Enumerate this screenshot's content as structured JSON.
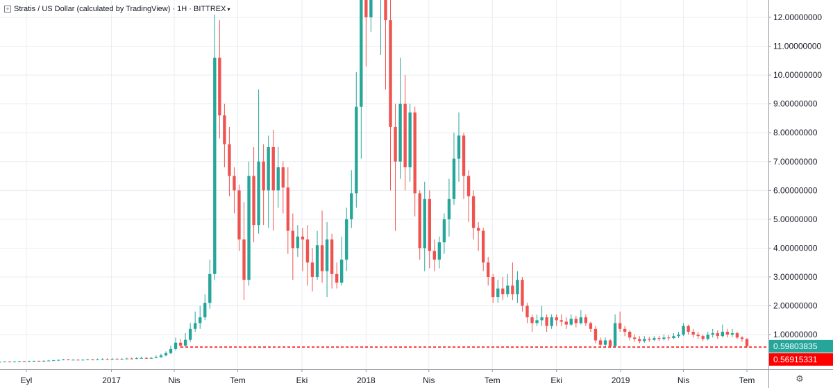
{
  "header": {
    "title": "Stratis / US Dollar (calculated by TradingView) · 1H · BITTREX",
    "chevron": "▾"
  },
  "settings_icon": "gear-icon",
  "colors": {
    "up": "#26a69a",
    "down": "#ef5350",
    "grid": "#e9ecf2",
    "axis_line": "#9598a1",
    "last_price": "#26a69a",
    "horizontal_line": "#ff0000"
  },
  "chart_data": {
    "type": "candlestick",
    "y_axis": {
      "min": -0.2,
      "max": 12.6,
      "ticks": [
        1,
        2,
        3,
        4,
        5,
        6,
        7,
        8,
        9,
        10,
        11,
        12
      ],
      "tick_labels": [
        "1.00000000",
        "2.00000000",
        "3.00000000",
        "4.00000000",
        "5.00000000",
        "6.00000000",
        "7.00000000",
        "8.00000000",
        "9.00000000",
        "10.00000000",
        "11.00000000",
        "12.00000000"
      ]
    },
    "x_axis": {
      "labels": [
        {
          "label": "Eyl",
          "date": "2016-09-01"
        },
        {
          "label": "2017",
          "date": "2017-01-01"
        },
        {
          "label": "Nis",
          "date": "2017-04-01"
        },
        {
          "label": "Tem",
          "date": "2017-07-01"
        },
        {
          "label": "Eki",
          "date": "2017-10-01"
        },
        {
          "label": "2018",
          "date": "2018-01-01"
        },
        {
          "label": "Nis",
          "date": "2018-04-01"
        },
        {
          "label": "Tem",
          "date": "2018-07-01"
        },
        {
          "label": "Eki",
          "date": "2018-10-01"
        },
        {
          "label": "2019",
          "date": "2019-01-01"
        },
        {
          "label": "Nis",
          "date": "2019-04-01"
        },
        {
          "label": "Tem",
          "date": "2019-07-01"
        }
      ]
    },
    "price_labels": [
      {
        "label": "0.59803835",
        "value": 0.598,
        "color": "#26a69a"
      },
      {
        "label": "0.56915331",
        "value": 0.569,
        "color": "#ff0000"
      }
    ],
    "horizontal_line": {
      "value": 0.57,
      "start_date": "2017-04-10",
      "style": "dashed"
    },
    "candles_start_date": "2016-07-25",
    "candles_interval_days": 7,
    "candles": [
      [
        0.06,
        0.06,
        0.07,
        0.05
      ],
      [
        0.06,
        0.07,
        0.08,
        0.05
      ],
      [
        0.07,
        0.06,
        0.08,
        0.05
      ],
      [
        0.06,
        0.07,
        0.08,
        0.05
      ],
      [
        0.07,
        0.08,
        0.09,
        0.06
      ],
      [
        0.08,
        0.07,
        0.09,
        0.06
      ],
      [
        0.07,
        0.08,
        0.1,
        0.06
      ],
      [
        0.08,
        0.09,
        0.1,
        0.07
      ],
      [
        0.09,
        0.08,
        0.1,
        0.07
      ],
      [
        0.08,
        0.09,
        0.11,
        0.07
      ],
      [
        0.09,
        0.1,
        0.12,
        0.08
      ],
      [
        0.1,
        0.11,
        0.13,
        0.09
      ],
      [
        0.11,
        0.12,
        0.14,
        0.1
      ],
      [
        0.12,
        0.14,
        0.16,
        0.11
      ],
      [
        0.14,
        0.12,
        0.16,
        0.11
      ],
      [
        0.12,
        0.13,
        0.15,
        0.11
      ],
      [
        0.13,
        0.12,
        0.15,
        0.11
      ],
      [
        0.12,
        0.13,
        0.15,
        0.11
      ],
      [
        0.13,
        0.14,
        0.16,
        0.12
      ],
      [
        0.14,
        0.13,
        0.16,
        0.12
      ],
      [
        0.13,
        0.14,
        0.17,
        0.12
      ],
      [
        0.14,
        0.15,
        0.18,
        0.13
      ],
      [
        0.15,
        0.14,
        0.18,
        0.13
      ],
      [
        0.14,
        0.16,
        0.19,
        0.13
      ],
      [
        0.16,
        0.15,
        0.19,
        0.14
      ],
      [
        0.15,
        0.16,
        0.19,
        0.14
      ],
      [
        0.16,
        0.17,
        0.2,
        0.15
      ],
      [
        0.17,
        0.16,
        0.21,
        0.15
      ],
      [
        0.16,
        0.18,
        0.22,
        0.15
      ],
      [
        0.18,
        0.19,
        0.24,
        0.17
      ],
      [
        0.19,
        0.18,
        0.23,
        0.16
      ],
      [
        0.18,
        0.19,
        0.23,
        0.17
      ],
      [
        0.19,
        0.22,
        0.28,
        0.18
      ],
      [
        0.22,
        0.28,
        0.34,
        0.2
      ],
      [
        0.28,
        0.36,
        0.42,
        0.25
      ],
      [
        0.36,
        0.5,
        0.62,
        0.32
      ],
      [
        0.5,
        0.72,
        0.9,
        0.45
      ],
      [
        0.72,
        0.62,
        0.85,
        0.55
      ],
      [
        0.62,
        0.82,
        1.05,
        0.58
      ],
      [
        0.82,
        1.2,
        1.4,
        0.75
      ],
      [
        1.2,
        1.4,
        1.8,
        1.1
      ],
      [
        1.4,
        1.6,
        2.0,
        1.2
      ],
      [
        1.6,
        2.1,
        2.4,
        1.5
      ],
      [
        2.1,
        3.1,
        3.6,
        1.9
      ],
      [
        3.1,
        10.6,
        12.1,
        2.9
      ],
      [
        10.6,
        8.6,
        11.9,
        7.8
      ],
      [
        8.6,
        7.6,
        9.0,
        6.8
      ],
      [
        7.6,
        6.5,
        8.2,
        5.8
      ],
      [
        6.5,
        6.0,
        6.8,
        5.2
      ],
      [
        6.0,
        4.3,
        6.2,
        3.9
      ],
      [
        4.3,
        2.9,
        5.6,
        2.2
      ],
      [
        2.9,
        6.5,
        7.0,
        2.7
      ],
      [
        6.5,
        4.8,
        7.5,
        4.2
      ],
      [
        4.8,
        7.0,
        9.5,
        4.5
      ],
      [
        7.0,
        6.0,
        7.6,
        4.8
      ],
      [
        6.0,
        7.5,
        7.9,
        4.7
      ],
      [
        7.5,
        6.0,
        8.1,
        4.6
      ],
      [
        6.0,
        6.8,
        7.5,
        5.4
      ],
      [
        6.8,
        6.1,
        7.0,
        5.2
      ],
      [
        6.1,
        4.6,
        6.8,
        3.8
      ],
      [
        4.6,
        4.0,
        5.2,
        2.9
      ],
      [
        4.0,
        4.4,
        4.8,
        3.7
      ],
      [
        4.4,
        4.3,
        4.7,
        3.2
      ],
      [
        4.3,
        3.5,
        4.8,
        2.7
      ],
      [
        3.5,
        3.0,
        4.0,
        2.5
      ],
      [
        3.0,
        4.1,
        4.6,
        2.9
      ],
      [
        4.1,
        3.2,
        5.3,
        2.8
      ],
      [
        3.2,
        4.3,
        4.9,
        2.3
      ],
      [
        4.3,
        3.1,
        4.5,
        2.6
      ],
      [
        3.1,
        2.8,
        3.5,
        2.6
      ],
      [
        2.8,
        3.6,
        4.4,
        2.7
      ],
      [
        3.6,
        5.0,
        5.4,
        3.2
      ],
      [
        5.0,
        5.9,
        6.7,
        4.7
      ],
      [
        5.9,
        8.9,
        10.1,
        5.4
      ],
      [
        8.9,
        12.8,
        13.4,
        7.1
      ],
      [
        12.8,
        12.0,
        14.5,
        10.3
      ],
      [
        12.0,
        15.0,
        16.5,
        11.5
      ],
      [
        15.0,
        14.0,
        16.0,
        13.0
      ],
      [
        14.0,
        16.0,
        17.5,
        10.7
      ],
      [
        16.0,
        11.9,
        16.2,
        9.5
      ],
      [
        11.9,
        8.2,
        12.6,
        6.0
      ],
      [
        8.2,
        7.0,
        9.0,
        4.6
      ],
      [
        7.0,
        9.0,
        10.6,
        6.4
      ],
      [
        9.0,
        6.8,
        10.0,
        6.0
      ],
      [
        6.8,
        8.7,
        9.0,
        6.3
      ],
      [
        8.7,
        5.9,
        8.9,
        5.1
      ],
      [
        5.9,
        4.0,
        6.0,
        3.6
      ],
      [
        4.0,
        5.7,
        6.3,
        3.2
      ],
      [
        5.7,
        3.9,
        6.0,
        3.3
      ],
      [
        3.9,
        3.6,
        4.3,
        3.2
      ],
      [
        3.6,
        4.2,
        4.4,
        3.3
      ],
      [
        4.2,
        5.0,
        5.2,
        3.8
      ],
      [
        5.0,
        5.7,
        6.4,
        4.4
      ],
      [
        5.7,
        7.1,
        8.0,
        5.5
      ],
      [
        7.1,
        7.9,
        8.7,
        6.3
      ],
      [
        7.9,
        6.5,
        8.0,
        5.7
      ],
      [
        6.5,
        5.8,
        6.7,
        4.9
      ],
      [
        5.8,
        4.7,
        6.0,
        4.3
      ],
      [
        4.7,
        4.6,
        4.9,
        3.9
      ],
      [
        4.6,
        3.5,
        4.7,
        3.2
      ],
      [
        3.5,
        3.0,
        3.7,
        2.7
      ],
      [
        3.0,
        2.3,
        3.1,
        2.1
      ],
      [
        2.3,
        2.6,
        2.9,
        2.1
      ],
      [
        2.6,
        2.4,
        3.0,
        2.2
      ],
      [
        2.4,
        2.7,
        3.1,
        2.3
      ],
      [
        2.7,
        2.4,
        3.5,
        2.2
      ],
      [
        2.4,
        2.9,
        3.2,
        2.1
      ],
      [
        2.9,
        2.0,
        3.0,
        1.8
      ],
      [
        2.0,
        1.6,
        2.1,
        1.4
      ],
      [
        1.6,
        1.4,
        1.7,
        1.1
      ],
      [
        1.4,
        1.5,
        1.7,
        1.3
      ],
      [
        1.5,
        1.6,
        2.0,
        1.3
      ],
      [
        1.6,
        1.3,
        1.7,
        1.1
      ],
      [
        1.3,
        1.6,
        1.7,
        1.2
      ],
      [
        1.6,
        1.5,
        1.7,
        1.3
      ],
      [
        1.5,
        1.45,
        1.7,
        1.3
      ],
      [
        1.45,
        1.35,
        1.6,
        1.2
      ],
      [
        1.35,
        1.55,
        1.7,
        1.3
      ],
      [
        1.55,
        1.4,
        1.65,
        1.25
      ],
      [
        1.4,
        1.6,
        1.85,
        1.35
      ],
      [
        1.6,
        1.4,
        1.7,
        1.3
      ],
      [
        1.4,
        1.2,
        1.45,
        1.1
      ],
      [
        1.2,
        0.8,
        1.3,
        0.7
      ],
      [
        0.8,
        0.65,
        0.9,
        0.6
      ],
      [
        0.65,
        0.8,
        0.9,
        0.55
      ],
      [
        0.8,
        0.6,
        0.85,
        0.55
      ],
      [
        0.6,
        1.4,
        1.7,
        0.55
      ],
      [
        1.4,
        1.2,
        1.8,
        1.1
      ],
      [
        1.2,
        1.1,
        1.3,
        0.95
      ],
      [
        1.1,
        0.9,
        1.15,
        0.8
      ],
      [
        0.9,
        0.85,
        1.0,
        0.75
      ],
      [
        0.85,
        0.78,
        0.95,
        0.7
      ],
      [
        0.78,
        0.85,
        0.95,
        0.72
      ],
      [
        0.85,
        0.82,
        0.92,
        0.75
      ],
      [
        0.82,
        0.88,
        0.95,
        0.78
      ],
      [
        0.88,
        0.85,
        0.95,
        0.78
      ],
      [
        0.85,
        0.9,
        1.0,
        0.8
      ],
      [
        0.9,
        0.88,
        0.98,
        0.8
      ],
      [
        0.88,
        0.95,
        1.05,
        0.85
      ],
      [
        0.95,
        1.0,
        1.1,
        0.88
      ],
      [
        1.0,
        1.3,
        1.4,
        0.95
      ],
      [
        1.3,
        1.1,
        1.35,
        1.0
      ],
      [
        1.1,
        1.0,
        1.2,
        0.9
      ],
      [
        1.0,
        0.95,
        1.1,
        0.85
      ],
      [
        0.95,
        0.85,
        1.0,
        0.78
      ],
      [
        0.85,
        1.0,
        1.1,
        0.8
      ],
      [
        1.0,
        1.05,
        1.2,
        0.9
      ],
      [
        1.05,
        0.95,
        1.15,
        0.85
      ],
      [
        0.95,
        1.1,
        1.35,
        0.9
      ],
      [
        1.1,
        1.0,
        1.2,
        0.9
      ],
      [
        1.0,
        1.05,
        1.2,
        0.92
      ],
      [
        1.05,
        0.9,
        1.1,
        0.85
      ],
      [
        0.9,
        0.85,
        0.95,
        0.75
      ],
      [
        0.85,
        0.6,
        0.88,
        0.55
      ]
    ]
  }
}
